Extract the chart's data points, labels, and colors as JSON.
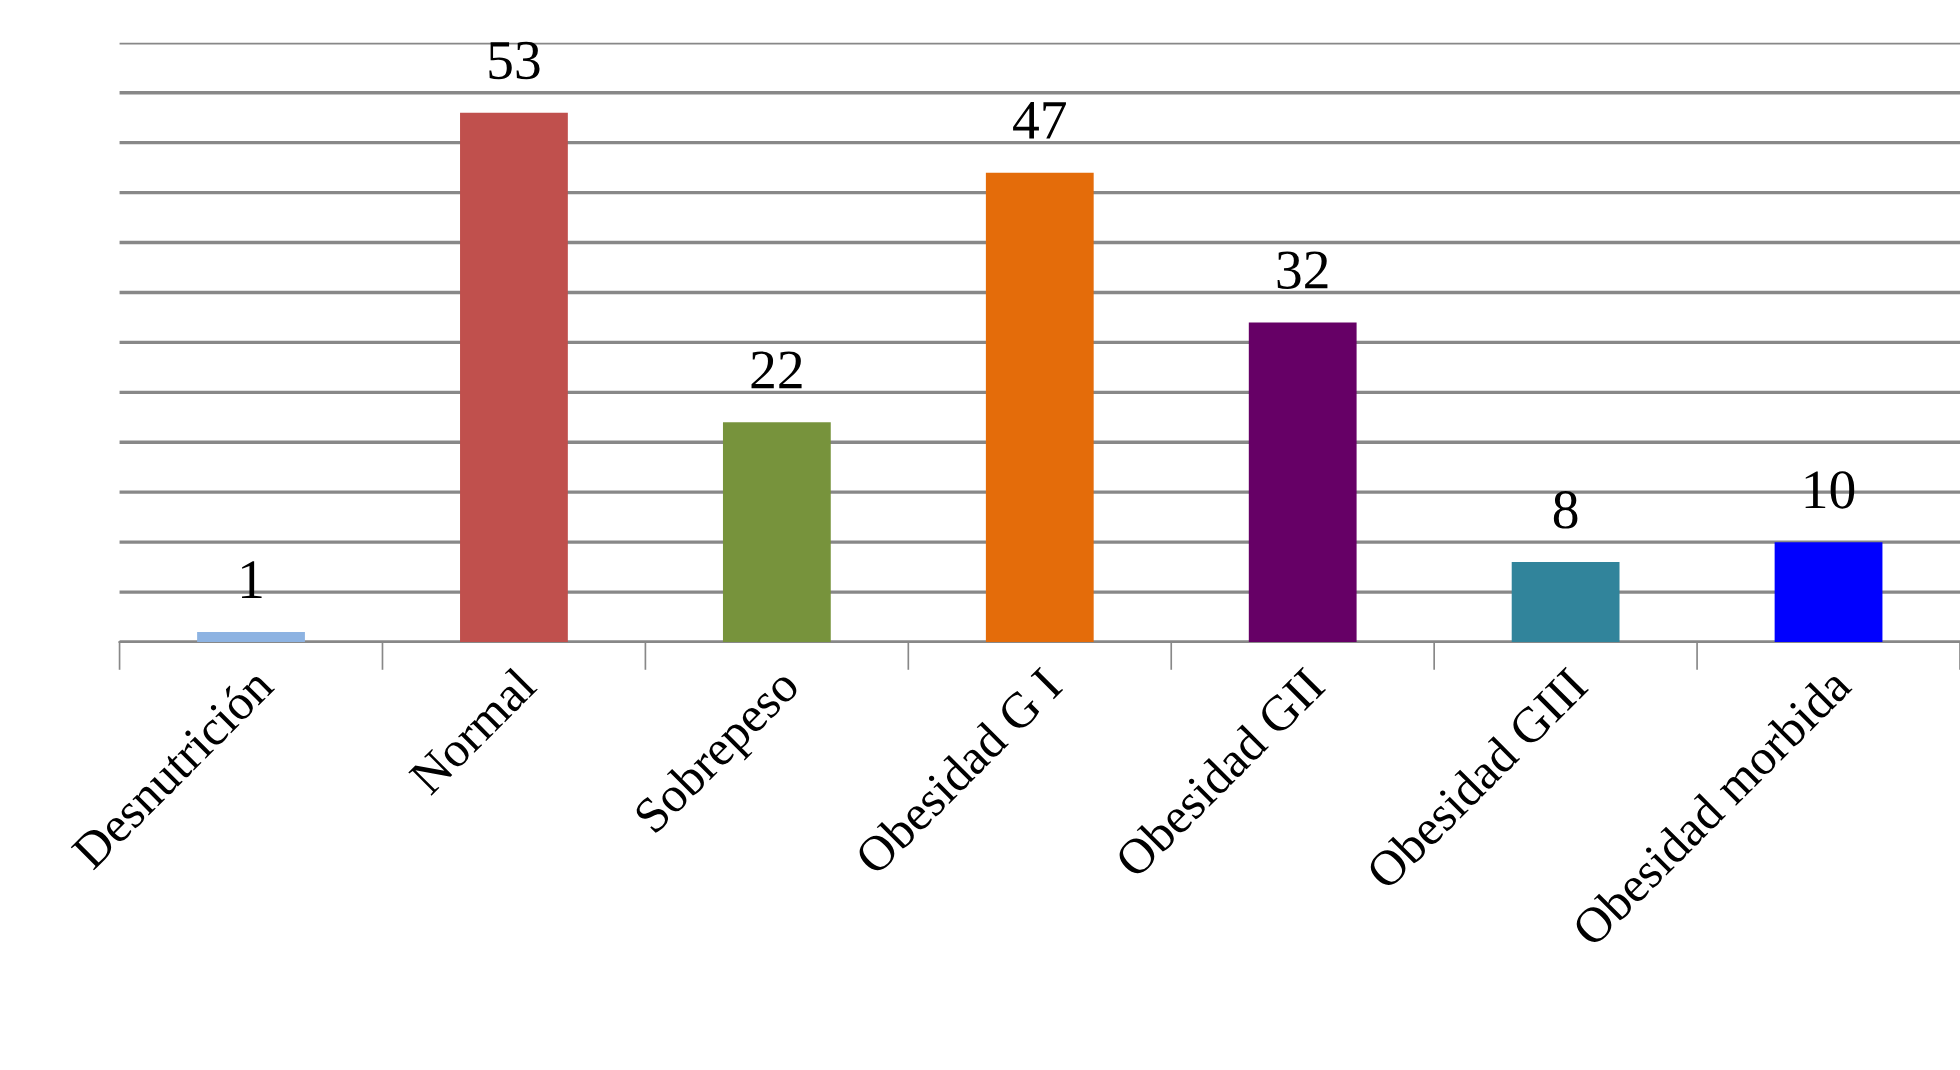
{
  "chart_data": {
    "type": "bar",
    "categories": [
      "Desnutrición",
      "Normal",
      "Sobrepeso",
      "Obesidad G I",
      "Obesidad GII",
      "Obesidad GIII",
      "Obesidad morbida"
    ],
    "values": [
      1,
      53,
      22,
      47,
      32,
      8,
      10
    ],
    "colors": [
      "#8db3e2",
      "#c0504d",
      "#77933c",
      "#e46c0a",
      "#660066",
      "#31849b",
      "#0000ff"
    ],
    "ylim": [
      0,
      60
    ],
    "yticks": [
      {
        "value": 0,
        "label": null
      },
      {
        "value": 5,
        "label": null
      },
      {
        "value": 10,
        "label": null
      },
      {
        "value": 15,
        "label": null
      },
      {
        "value": 20,
        "label": null
      },
      {
        "value": 25,
        "label": null
      },
      {
        "value": 30,
        "label": null
      },
      {
        "value": 35,
        "label": null
      },
      {
        "value": 40,
        "label": null
      },
      {
        "value": 45,
        "label": null
      },
      {
        "value": 50,
        "label": null
      },
      {
        "value": 55,
        "label": null
      },
      {
        "value": 60,
        "label": null
      }
    ],
    "tick_labels": "x",
    "grid": "y",
    "legend": false,
    "data_labels": true
  }
}
